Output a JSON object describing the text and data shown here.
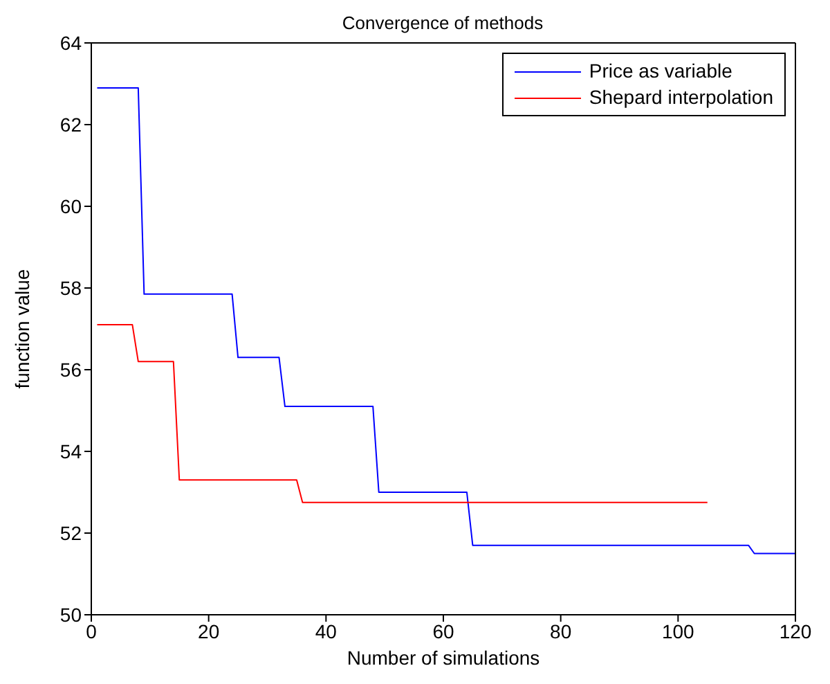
{
  "chart_data": {
    "type": "line",
    "title": "Convergence of methods",
    "xlabel": "Number of simulations",
    "ylabel": "function value",
    "xlim": [
      0,
      120
    ],
    "xticks": [
      0,
      20,
      40,
      60,
      80,
      100,
      120
    ],
    "ylim": [
      50,
      64
    ],
    "yticks": [
      50,
      52,
      54,
      56,
      58,
      60,
      62,
      64
    ],
    "legend": "top right",
    "marker": "none",
    "line_style": "solid",
    "series": [
      {
        "name": "Price as variable",
        "color": "#0000ff",
        "x": [
          1,
          8,
          9,
          24,
          25,
          32,
          33,
          48,
          49,
          64,
          65,
          112,
          113,
          120
        ],
        "values": [
          62.9,
          62.9,
          57.85,
          57.85,
          56.3,
          56.3,
          55.1,
          55.1,
          53.0,
          53.0,
          51.7,
          51.7,
          51.5,
          51.5
        ]
      },
      {
        "name": "Shepard interpolation",
        "color": "#ff0000",
        "x": [
          1,
          7,
          8,
          14,
          15,
          35,
          36,
          105
        ],
        "values": [
          57.1,
          57.1,
          56.2,
          56.2,
          53.3,
          53.3,
          52.75,
          52.75
        ]
      }
    ]
  }
}
